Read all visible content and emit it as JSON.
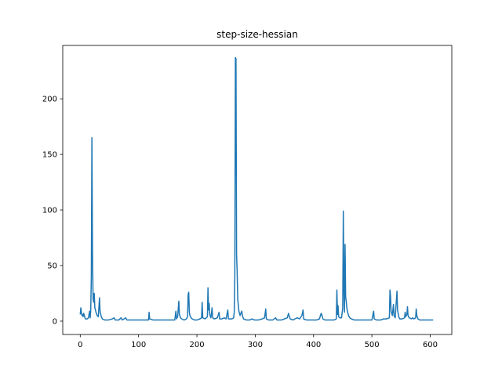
{
  "chart_data": {
    "type": "line",
    "title": "step-size-hessian",
    "xlabel": "",
    "ylabel": "",
    "xlim": [
      -30,
      637
    ],
    "ylim": [
      -12,
      248
    ],
    "grid": false,
    "legend": "none",
    "x_ticks": [
      0,
      100,
      200,
      300,
      400,
      500,
      600
    ],
    "y_ticks": [
      0,
      50,
      100,
      150,
      200
    ],
    "series": [
      {
        "color": "#1f77b4",
        "points": [
          [
            0,
            6
          ],
          [
            1,
            12
          ],
          [
            2,
            8
          ],
          [
            3,
            5
          ],
          [
            4,
            6
          ],
          [
            5,
            4
          ],
          [
            6,
            7
          ],
          [
            7,
            5
          ],
          [
            8,
            3
          ],
          [
            9,
            2
          ],
          [
            10,
            2
          ],
          [
            12,
            2
          ],
          [
            14,
            3
          ],
          [
            16,
            9
          ],
          [
            17,
            3
          ],
          [
            18,
            10
          ],
          [
            19,
            40
          ],
          [
            20,
            165
          ],
          [
            21,
            60
          ],
          [
            22,
            20
          ],
          [
            23,
            17
          ],
          [
            24,
            25
          ],
          [
            25,
            12
          ],
          [
            27,
            8
          ],
          [
            29,
            5
          ],
          [
            31,
            4
          ],
          [
            33,
            21
          ],
          [
            34,
            9
          ],
          [
            36,
            4
          ],
          [
            38,
            2
          ],
          [
            42,
            1
          ],
          [
            48,
            1
          ],
          [
            55,
            2
          ],
          [
            58,
            3
          ],
          [
            60,
            1
          ],
          [
            66,
            1
          ],
          [
            70,
            3
          ],
          [
            72,
            1
          ],
          [
            78,
            3
          ],
          [
            80,
            1
          ],
          [
            90,
            1
          ],
          [
            100,
            1
          ],
          [
            108,
            1
          ],
          [
            112,
            1
          ],
          [
            117,
            1
          ],
          [
            118,
            8
          ],
          [
            119,
            2
          ],
          [
            125,
            1
          ],
          [
            135,
            1
          ],
          [
            145,
            1
          ],
          [
            150,
            1
          ],
          [
            158,
            1
          ],
          [
            162,
            1
          ],
          [
            164,
            9
          ],
          [
            165,
            2
          ],
          [
            167,
            4
          ],
          [
            169,
            18
          ],
          [
            170,
            6
          ],
          [
            172,
            3
          ],
          [
            174,
            2
          ],
          [
            178,
            1
          ],
          [
            182,
            2
          ],
          [
            184,
            4
          ],
          [
            185,
            24
          ],
          [
            186,
            26
          ],
          [
            187,
            8
          ],
          [
            188,
            5
          ],
          [
            190,
            3
          ],
          [
            192,
            2
          ],
          [
            196,
            1
          ],
          [
            200,
            1
          ],
          [
            205,
            2
          ],
          [
            208,
            3
          ],
          [
            209,
            17
          ],
          [
            210,
            3
          ],
          [
            214,
            2
          ],
          [
            218,
            4
          ],
          [
            219,
            30
          ],
          [
            220,
            10
          ],
          [
            221,
            16
          ],
          [
            222,
            6
          ],
          [
            224,
            3
          ],
          [
            226,
            12
          ],
          [
            227,
            3
          ],
          [
            230,
            2
          ],
          [
            235,
            3
          ],
          [
            238,
            8
          ],
          [
            239,
            2
          ],
          [
            243,
            2
          ],
          [
            247,
            3
          ],
          [
            250,
            2
          ],
          [
            253,
            10
          ],
          [
            254,
            2
          ],
          [
            257,
            2
          ],
          [
            260,
            2
          ],
          [
            263,
            3
          ],
          [
            264,
            8
          ],
          [
            265,
            40
          ],
          [
            266,
            237
          ],
          [
            267,
            236
          ],
          [
            268,
            60
          ],
          [
            269,
            45
          ],
          [
            270,
            20
          ],
          [
            272,
            9
          ],
          [
            274,
            5
          ],
          [
            276,
            8
          ],
          [
            277,
            9
          ],
          [
            278,
            5
          ],
          [
            280,
            2
          ],
          [
            285,
            1
          ],
          [
            290,
            1
          ],
          [
            295,
            2
          ],
          [
            298,
            1
          ],
          [
            305,
            1
          ],
          [
            312,
            2
          ],
          [
            316,
            3
          ],
          [
            318,
            11
          ],
          [
            319,
            2
          ],
          [
            323,
            1
          ],
          [
            330,
            1
          ],
          [
            335,
            3
          ],
          [
            337,
            1
          ],
          [
            345,
            1
          ],
          [
            350,
            2
          ],
          [
            355,
            3
          ],
          [
            357,
            7
          ],
          [
            358,
            5
          ],
          [
            360,
            2
          ],
          [
            365,
            1
          ],
          [
            368,
            2
          ],
          [
            372,
            3
          ],
          [
            376,
            2
          ],
          [
            380,
            5
          ],
          [
            382,
            10
          ],
          [
            383,
            2
          ],
          [
            388,
            1
          ],
          [
            395,
            1
          ],
          [
            400,
            1
          ],
          [
            405,
            1
          ],
          [
            410,
            2
          ],
          [
            413,
            7
          ],
          [
            414,
            6
          ],
          [
            416,
            2
          ],
          [
            420,
            1
          ],
          [
            425,
            1
          ],
          [
            430,
            1
          ],
          [
            435,
            1
          ],
          [
            439,
            2
          ],
          [
            440,
            28
          ],
          [
            441,
            6
          ],
          [
            442,
            14
          ],
          [
            443,
            4
          ],
          [
            445,
            3
          ],
          [
            448,
            3
          ],
          [
            450,
            12
          ],
          [
            451,
            99
          ],
          [
            452,
            30
          ],
          [
            453,
            8
          ],
          [
            454,
            69
          ],
          [
            455,
            22
          ],
          [
            456,
            18
          ],
          [
            457,
            12
          ],
          [
            458,
            9
          ],
          [
            460,
            5
          ],
          [
            462,
            3
          ],
          [
            465,
            2
          ],
          [
            470,
            1
          ],
          [
            480,
            1
          ],
          [
            490,
            1
          ],
          [
            495,
            1
          ],
          [
            500,
            1
          ],
          [
            503,
            9
          ],
          [
            504,
            2
          ],
          [
            508,
            1
          ],
          [
            515,
            1
          ],
          [
            520,
            2
          ],
          [
            525,
            2
          ],
          [
            530,
            3
          ],
          [
            531,
            28
          ],
          [
            532,
            22
          ],
          [
            533,
            9
          ],
          [
            535,
            5
          ],
          [
            537,
            15
          ],
          [
            538,
            5
          ],
          [
            540,
            3
          ],
          [
            543,
            27
          ],
          [
            544,
            10
          ],
          [
            546,
            4
          ],
          [
            548,
            2
          ],
          [
            552,
            2
          ],
          [
            556,
            3
          ],
          [
            557,
            8
          ],
          [
            558,
            4
          ],
          [
            560,
            6
          ],
          [
            561,
            13
          ],
          [
            562,
            5
          ],
          [
            564,
            3
          ],
          [
            568,
            2
          ],
          [
            570,
            3
          ],
          [
            572,
            2
          ],
          [
            575,
            3
          ],
          [
            576,
            11
          ],
          [
            577,
            5
          ],
          [
            579,
            2
          ],
          [
            582,
            1
          ],
          [
            586,
            1
          ],
          [
            590,
            1
          ],
          [
            595,
            1
          ],
          [
            600,
            1
          ],
          [
            605,
            1
          ]
        ]
      }
    ]
  }
}
